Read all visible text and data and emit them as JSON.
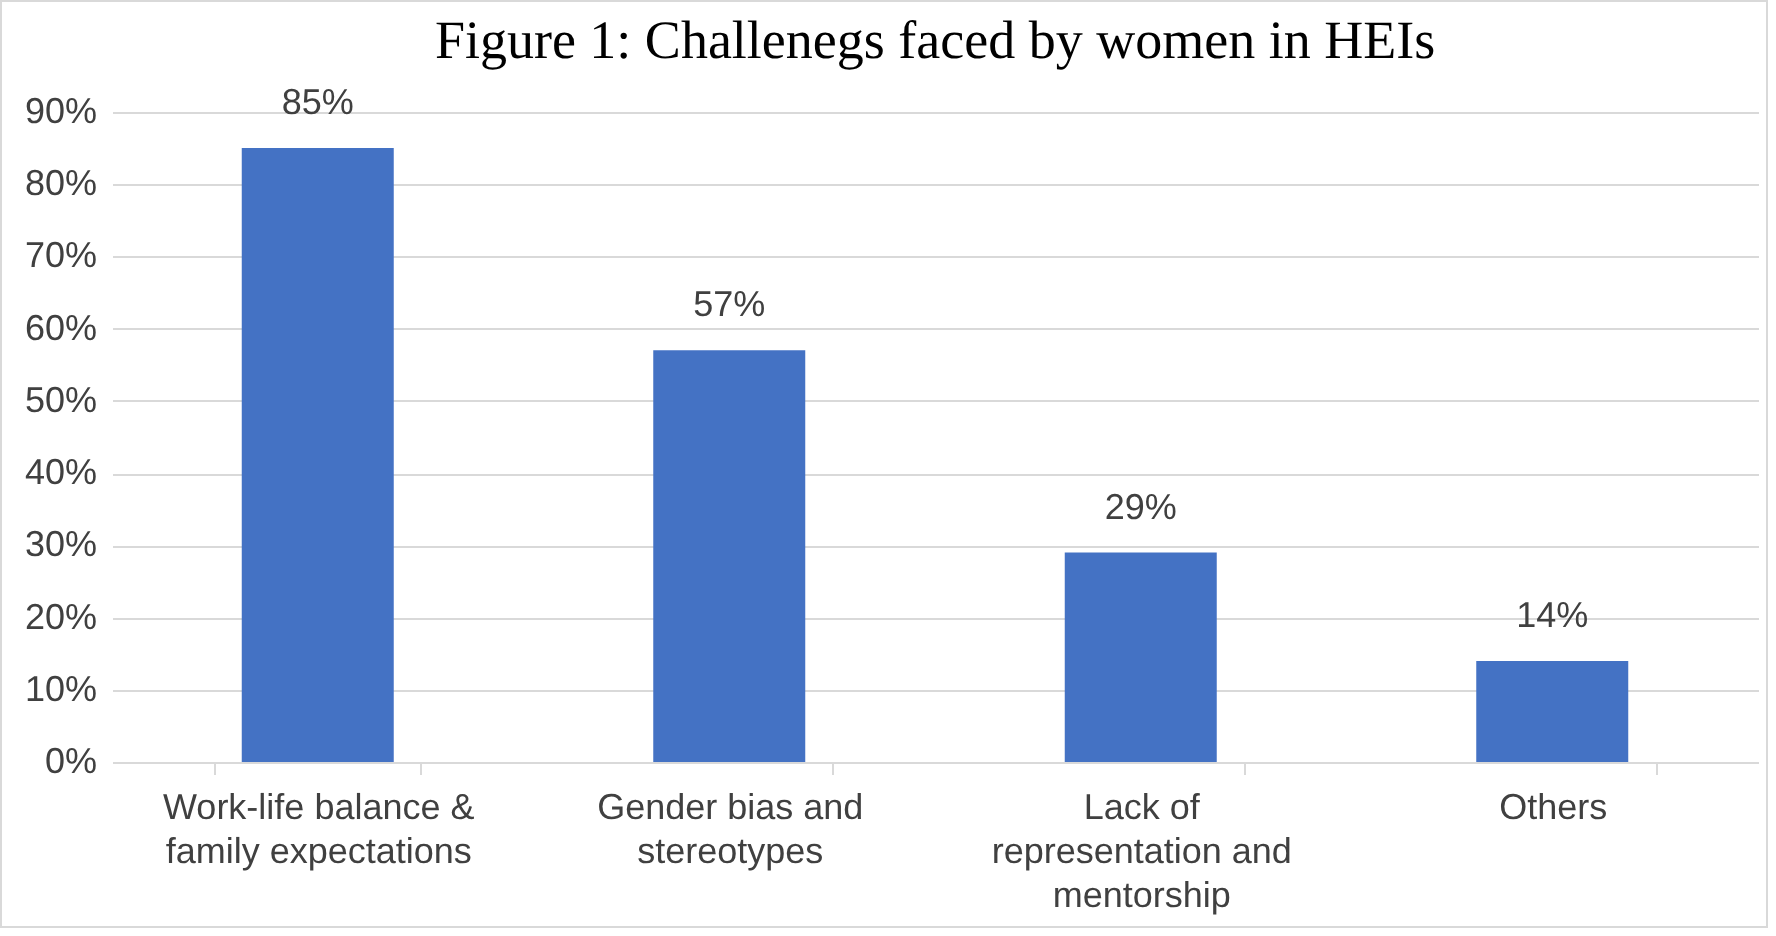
{
  "chart_data": {
    "type": "bar",
    "title": "Figure 1: Challenegs faced by women in HEIs",
    "categories": [
      "Work-life balance & family expectations",
      "Gender bias and stereotypes",
      "Lack of representation and mentorship",
      "Others"
    ],
    "values": [
      85,
      57,
      29,
      14
    ],
    "value_labels": [
      "85%",
      "57%",
      "29%",
      "14%"
    ],
    "color": "#4472c4",
    "ylim": [
      0,
      90
    ],
    "yticks": [
      {
        "value": 0,
        "label": "0%"
      },
      {
        "value": 10,
        "label": "10%"
      },
      {
        "value": 20,
        "label": "20%"
      },
      {
        "value": 30,
        "label": "30%"
      },
      {
        "value": 40,
        "label": "40%"
      },
      {
        "value": 50,
        "label": "50%"
      },
      {
        "value": 60,
        "label": "60%"
      },
      {
        "value": 70,
        "label": "70%"
      },
      {
        "value": 80,
        "label": "80%"
      },
      {
        "value": 90,
        "label": "90%"
      }
    ],
    "grid": "y"
  }
}
